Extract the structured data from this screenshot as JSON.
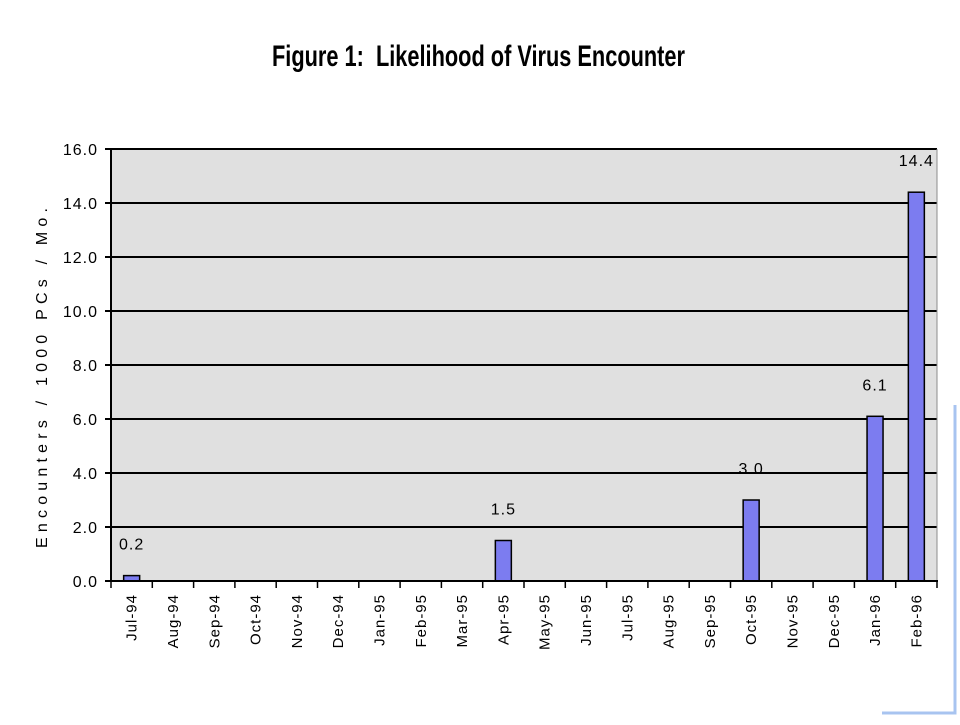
{
  "chart_data": {
    "type": "bar",
    "title": "Figure 1:  Likelihood of Virus Encounter",
    "ylabel": "Encounters / 1000 PCs / Mo.",
    "categories": [
      "Jul-94",
      "Aug-94",
      "Sep-94",
      "Oct-94",
      "Nov-94",
      "Dec-94",
      "Jan-95",
      "Feb-95",
      "Mar-95",
      "Apr-95",
      "May-95",
      "Jun-95",
      "Jul-95",
      "Aug-95",
      "Sep-95",
      "Oct-95",
      "Nov-95",
      "Dec-95",
      "Jan-96",
      "Feb-96"
    ],
    "values": [
      0.2,
      null,
      null,
      null,
      null,
      null,
      null,
      null,
      null,
      1.5,
      null,
      null,
      null,
      null,
      null,
      3.0,
      null,
      null,
      6.1,
      14.4
    ],
    "data_labels": [
      "0.2",
      null,
      null,
      null,
      null,
      null,
      null,
      null,
      null,
      "1.5",
      null,
      null,
      null,
      null,
      null,
      "3.0",
      null,
      null,
      "6.1",
      "14.4"
    ],
    "ylim": [
      0,
      16
    ],
    "yticks": [
      0,
      2,
      4,
      6,
      8,
      10,
      12,
      14,
      16
    ],
    "ytick_labels": [
      "0.0",
      "2.0",
      "4.0",
      "6.0",
      "8.0",
      "10.0",
      "12.0",
      "14.0",
      "16.0"
    ],
    "grid": true,
    "legend": "none",
    "colors": {
      "bar_fill": "#7c7cf0",
      "bar_edge": "#000000",
      "plot_background": "#e0e0e0",
      "gridline": "#000000",
      "corner_accent": "#a8c4f0"
    }
  }
}
